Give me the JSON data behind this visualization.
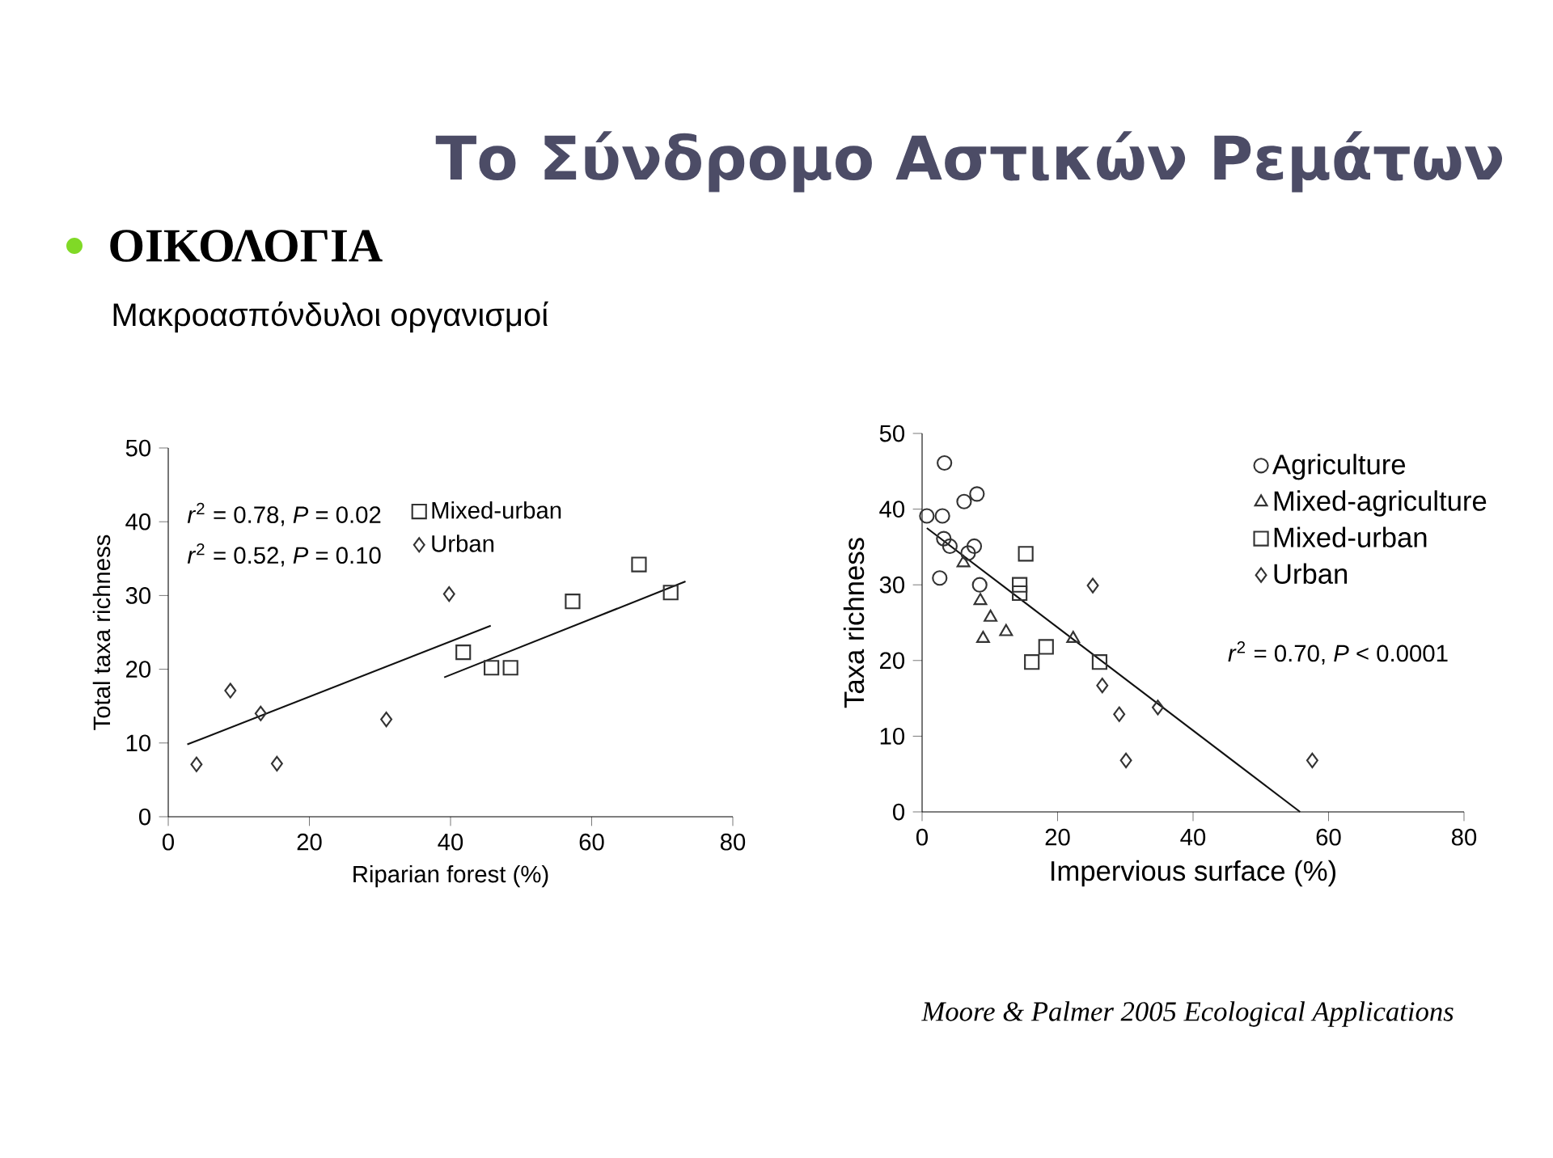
{
  "chart_data": [
    {
      "type": "scatter",
      "title": "Το Σύνδρομο Αστικών Ρεμάτων",
      "subtitle": "ΟΙΚΟΛΟΓΙΑ",
      "xlabel": "Riparian forest (%)",
      "ylabel": "Total taxa richness",
      "xlim": [
        0,
        80
      ],
      "ylim": [
        0,
        50
      ],
      "xticks": [
        0,
        20,
        40,
        60,
        80
      ],
      "yticks": [
        0,
        10,
        20,
        30,
        40,
        50
      ],
      "legend": "top",
      "series": [
        {
          "name": "Mixed-urban",
          "color": "#333333",
          "marker": "square",
          "x": [
            41.8,
            45.8,
            48.5,
            57.3,
            66.7,
            71.2
          ],
          "values": [
            22.3,
            20.2,
            20.2,
            29.2,
            34.2,
            30.4
          ]
        },
        {
          "name": "Urban",
          "color": "#333333",
          "marker": "diamond",
          "x": [
            4.0,
            8.8,
            13.1,
            15.4,
            30.9,
            39.8
          ],
          "values": [
            7.1,
            17.1,
            14.0,
            7.2,
            13.2,
            30.2
          ]
        },
        {
          "type": "line",
          "color": "#111111",
          "line_style": "solid",
          "x": [
            2.7,
            45.7
          ],
          "values": [
            9.8,
            25.9
          ]
        },
        {
          "type": "line",
          "color": "#111111",
          "line_style": "solid",
          "x": [
            39.1,
            73.3
          ],
          "values": [
            18.9,
            31.9
          ]
        }
      ],
      "annotations": [
        "Μακροασπόνδυλοι οργανισμοί",
        "*r*$^{2}$ = 0.78, *P* = 0.02",
        "*r*$^{2}$ = 0.52, *P* = 0.10"
      ]
    },
    {
      "type": "scatter",
      "xlabel": "Impervious surface (%)",
      "ylabel": "Taxa richness",
      "xlim": [
        0,
        80
      ],
      "ylim": [
        0,
        50
      ],
      "xticks": [
        0,
        20,
        40,
        60,
        80
      ],
      "yticks": [
        0,
        10,
        20,
        30,
        40,
        50
      ],
      "legend": "top right",
      "series": [
        {
          "name": "Agriculture",
          "color": "#333333",
          "marker": "circle",
          "x": [
            0.7,
            3.3,
            3.0,
            2.6,
            3.2,
            4.1,
            6.2,
            8.1,
            7.7,
            8.5,
            6.8
          ],
          "values": [
            39.1,
            46.1,
            39.1,
            30.9,
            36.1,
            35.1,
            41.0,
            42.0,
            35.1,
            30.0,
            34.2
          ]
        },
        {
          "name": "Mixed-agriculture",
          "color": "#333333",
          "marker": "triangle",
          "x": [
            6.1,
            8.6,
            10.1,
            9.0,
            12.4,
            22.3
          ],
          "values": [
            32.9,
            27.9,
            25.7,
            22.9,
            23.8,
            22.9
          ]
        },
        {
          "name": "Mixed-urban",
          "color": "#333333",
          "marker": "square",
          "x": [
            15.3,
            14.4,
            14.4,
            16.2,
            18.3,
            26.2
          ],
          "values": [
            34.1,
            30.0,
            28.9,
            19.8,
            21.8,
            19.8
          ]
        },
        {
          "name": "Urban",
          "color": "#333333",
          "marker": "diamond",
          "x": [
            25.2,
            26.6,
            29.1,
            30.1,
            34.8,
            57.6
          ],
          "values": [
            29.9,
            16.7,
            12.9,
            6.8,
            13.8,
            6.8
          ]
        },
        {
          "type": "line",
          "color": "#111111",
          "line_style": "solid",
          "x": [
            0.7,
            55.8
          ],
          "values": [
            37.5,
            0
          ]
        }
      ],
      "annotations": [
        "*r*$^{2}$ = 0.70, *P* < 0.0001",
        "*Moore & Palmer 2005 Ecological Applications*"
      ]
    }
  ]
}
